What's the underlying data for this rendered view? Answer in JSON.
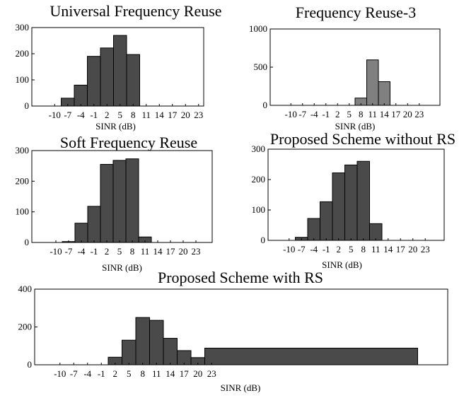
{
  "chart_data": [
    {
      "type": "bar",
      "title": "Universal Frequency Reuse",
      "xlabel": "SINR (dB)",
      "ylabel": "",
      "categories": [
        "-10",
        "-7",
        "-4",
        "-1",
        "2",
        "5",
        "8",
        "11",
        "14",
        "17",
        "20",
        "23"
      ],
      "values": [
        0,
        30,
        80,
        190,
        222,
        270,
        197,
        0,
        0,
        0,
        0,
        0
      ],
      "ylim": [
        0,
        300
      ],
      "yticks": [
        "0",
        "100",
        "200",
        "300"
      ],
      "bar_color": "#4a4a4a"
    },
    {
      "type": "bar",
      "title": "Frequency Reuse-3",
      "xlabel": "SINR (dB)",
      "ylabel": "",
      "categories": [
        "-10",
        "-7",
        "-4",
        "-1",
        "2",
        "5",
        "8",
        "11",
        "14",
        "17",
        "20",
        "23"
      ],
      "values": [
        0,
        0,
        0,
        0,
        0,
        0,
        95,
        595,
        310,
        0,
        0,
        0
      ],
      "ylim": [
        0,
        1000
      ],
      "yticks": [
        "0",
        "500",
        "1000"
      ],
      "bar_color": "#808080"
    },
    {
      "type": "bar",
      "title": "Soft Frequency Reuse",
      "xlabel": "SINR (dB)",
      "ylabel": "",
      "categories": [
        "-10",
        "-7",
        "-4",
        "-1",
        "2",
        "5",
        "8",
        "11",
        "14",
        "17",
        "20",
        "23"
      ],
      "values": [
        0,
        3,
        63,
        118,
        255,
        268,
        273,
        18,
        0,
        0,
        0,
        0
      ],
      "ylim": [
        0,
        300
      ],
      "yticks": [
        "0",
        "100",
        "200",
        "300"
      ],
      "bar_color": "#4a4a4a"
    },
    {
      "type": "bar",
      "title": "Proposed Scheme without RS",
      "xlabel": "SINR (dB)",
      "ylabel": "",
      "categories": [
        "-10",
        "-7",
        "-4",
        "-1",
        "2",
        "5",
        "8",
        "11",
        "14",
        "17",
        "20",
        "23"
      ],
      "values": [
        0,
        10,
        72,
        127,
        222,
        248,
        260,
        55,
        0,
        0,
        0,
        0
      ],
      "ylim": [
        0,
        300
      ],
      "yticks": [
        "0",
        "100",
        "200",
        "300"
      ],
      "bar_color": "#4a4a4a"
    },
    {
      "type": "bar",
      "title": "Proposed Scheme with RS",
      "xlabel": "SINR (dB)",
      "ylabel": "",
      "categories": [
        "-10",
        "-7",
        "-4",
        "-1",
        "2",
        "5",
        "8",
        "11",
        "14",
        "17",
        "20",
        "23"
      ],
      "values": [
        0,
        0,
        0,
        0,
        40,
        130,
        250,
        235,
        140,
        75,
        38,
        88
      ],
      "wide_last_bar": true,
      "ylim": [
        0,
        400
      ],
      "yticks": [
        "0",
        "200",
        "400"
      ],
      "bar_color": "#4a4a4a"
    }
  ]
}
